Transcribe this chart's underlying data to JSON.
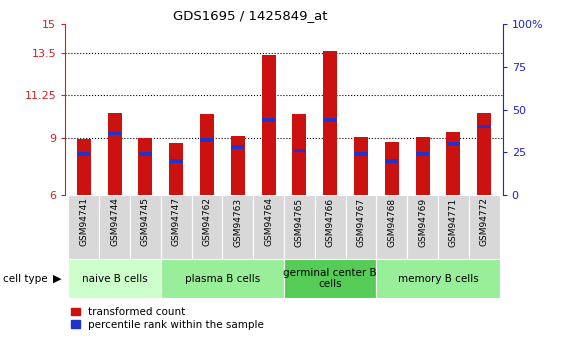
{
  "title": "GDS1695 / 1425849_at",
  "samples": [
    "GSM94741",
    "GSM94744",
    "GSM94745",
    "GSM94747",
    "GSM94762",
    "GSM94763",
    "GSM94764",
    "GSM94765",
    "GSM94766",
    "GSM94767",
    "GSM94768",
    "GSM94769",
    "GSM94771",
    "GSM94772"
  ],
  "transformed_count": [
    8.95,
    10.3,
    9.0,
    8.75,
    10.25,
    9.1,
    13.35,
    10.25,
    13.6,
    9.05,
    8.8,
    9.05,
    9.3,
    10.3
  ],
  "percentile_rank_pct": [
    24,
    36,
    24,
    20,
    32,
    28,
    44,
    26,
    44,
    24,
    20,
    24,
    30,
    40
  ],
  "ylim_left": [
    6,
    15
  ],
  "ylim_right": [
    0,
    100
  ],
  "yticks_left": [
    6,
    9,
    11.25,
    13.5,
    15
  ],
  "yticks_left_labels": [
    "6",
    "9",
    "11.25",
    "13.5",
    "15"
  ],
  "yticks_right": [
    0,
    25,
    50,
    75,
    100
  ],
  "yticks_right_labels": [
    "0",
    "25",
    "50",
    "75",
    "100%"
  ],
  "cell_groups": [
    {
      "label": "naive B cells",
      "start": 0,
      "end": 3,
      "color": "#ccffcc"
    },
    {
      "label": "plasma B cells",
      "start": 3,
      "end": 7,
      "color": "#99ee99"
    },
    {
      "label": "germinal center B\ncells",
      "start": 7,
      "end": 10,
      "color": "#55cc55"
    },
    {
      "label": "memory B cells",
      "start": 10,
      "end": 14,
      "color": "#99ee99"
    }
  ],
  "bar_color": "#cc1111",
  "percentile_color": "#2233cc",
  "bar_width": 0.45,
  "base_value": 6.0,
  "tick_label_color_left": "#cc2222",
  "tick_label_color_right": "#2222cc",
  "grid_dotted_at": [
    9,
    11.25,
    13.5
  ]
}
